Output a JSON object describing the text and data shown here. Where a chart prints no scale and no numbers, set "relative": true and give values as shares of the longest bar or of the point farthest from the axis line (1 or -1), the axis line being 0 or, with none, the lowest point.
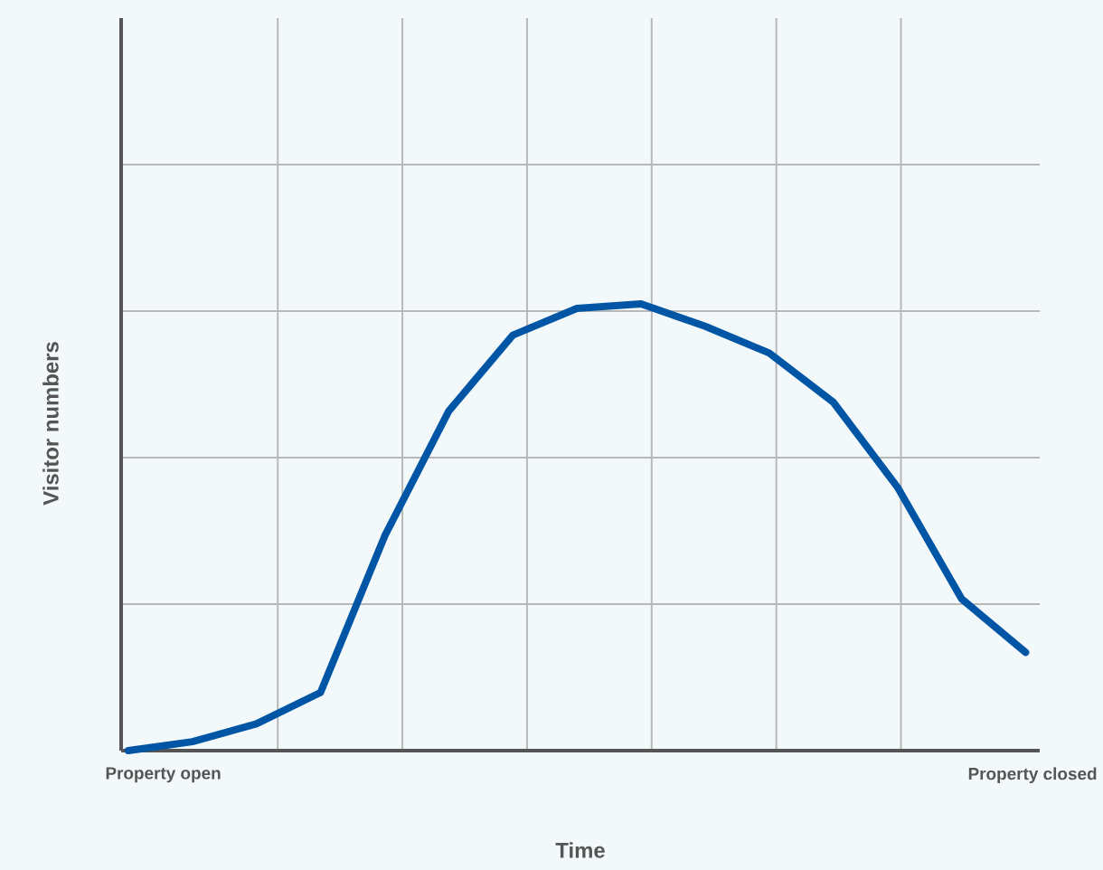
{
  "chart_data": {
    "type": "line",
    "relative": true,
    "xlabel": "Time",
    "ylabel": "Visitor numbers",
    "categories": [
      null,
      null,
      null,
      null,
      null,
      null,
      null,
      null,
      null,
      null,
      null,
      null,
      null,
      null,
      null
    ],
    "annotations": [
      "Property open",
      "Property closed"
    ],
    "values": [
      0,
      0.02,
      0.06,
      0.13,
      0.48,
      0.76,
      0.93,
      0.99,
      1.0,
      0.95,
      0.89,
      0.78,
      0.59,
      0.34,
      0.22
    ],
    "color": "#0055a4",
    "grid": true
  }
}
